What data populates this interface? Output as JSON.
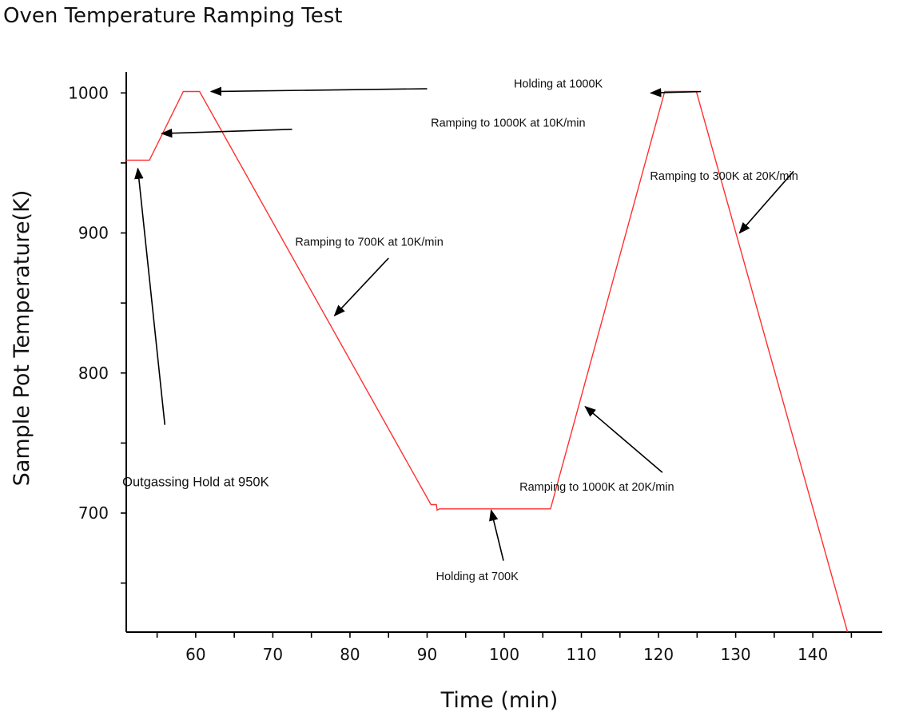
{
  "chart_data": {
    "type": "line",
    "title": "Oven Temperature Ramping Test",
    "xlabel": "Time (min)",
    "ylabel": "Sample Pot Temperature(K)",
    "xlim": [
      51,
      149
    ],
    "ylim": [
      615,
      1015
    ],
    "x_ticks": [
      60,
      70,
      80,
      90,
      100,
      110,
      120,
      130,
      140
    ],
    "x_minor_ticks": [
      55,
      65,
      75,
      85,
      95,
      105,
      115,
      125,
      135,
      145
    ],
    "y_ticks": [
      700,
      800,
      900,
      1000
    ],
    "y_minor_ticks": [
      650,
      750,
      850,
      950
    ],
    "series": [
      {
        "name": "Sample Pot Temperature",
        "color": "#ff3030",
        "x": [
          51,
          54,
          58.4,
          60.5,
          90.5,
          91.2,
          91.3,
          91.6,
          106,
          120.8,
          124.9,
          144.5
        ],
        "y": [
          952,
          952,
          1001,
          1001,
          706,
          706,
          702,
          703,
          703,
          1001,
          1001,
          615
        ]
      }
    ],
    "annotations": [
      {
        "text": "Holding at 1000K",
        "text_at": [
          107,
          1004
        ],
        "arrow_to": [
          62,
          1001
        ],
        "arrow_from": [
          90,
          1003
        ],
        "size": "normal"
      },
      {
        "text": "",
        "text_at": null,
        "arrow_to": [
          119,
          1000
        ],
        "arrow_from": [
          125.5,
          1001
        ],
        "size": "normal"
      },
      {
        "text": "Ramping to 1000K at 10K/min",
        "text_at": [
          100.5,
          976
        ],
        "arrow_to": [
          55.6,
          971
        ],
        "arrow_from": [
          72.5,
          974
        ],
        "size": "normal"
      },
      {
        "text": "Ramping to 300K at 20K/min",
        "text_at": [
          128.5,
          938
        ],
        "arrow_to": [
          130.5,
          900
        ],
        "arrow_from": [
          137.5,
          944
        ],
        "size": "normal"
      },
      {
        "text": "Ramping to 700K at 10K/min",
        "text_at": [
          82.5,
          891
        ],
        "arrow_to": [
          78,
          841
        ],
        "arrow_from": [
          85,
          882
        ],
        "size": "normal"
      },
      {
        "text": "Outgassing Hold at 950K",
        "text_at": [
          60,
          719
        ],
        "arrow_to": [
          52.5,
          946
        ],
        "arrow_from": [
          56,
          763
        ],
        "size": "large"
      },
      {
        "text": "Ramping to 1000K at 20K/min",
        "text_at": [
          112,
          716
        ],
        "arrow_to": [
          110.5,
          776
        ],
        "arrow_from": [
          120.5,
          729
        ],
        "size": "normal"
      },
      {
        "text": "Holding at 700K",
        "text_at": [
          96.5,
          652
        ],
        "arrow_to": [
          98.3,
          702
        ],
        "arrow_from": [
          99.9,
          666
        ],
        "size": "normal"
      }
    ]
  }
}
